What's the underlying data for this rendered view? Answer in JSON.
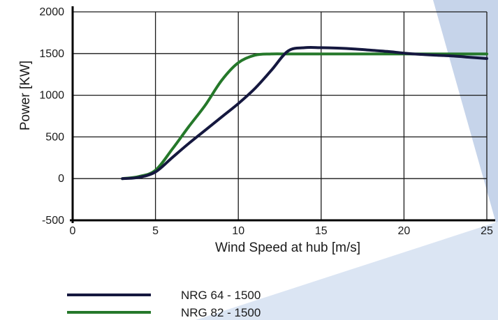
{
  "chart_data": {
    "type": "line",
    "title": "",
    "xlabel": "Wind Speed at hub [m/s]",
    "ylabel": "Power [KW]",
    "xlim": [
      0,
      25
    ],
    "ylim": [
      -500,
      2000
    ],
    "x_ticks": [
      "0",
      "5",
      "10",
      "15",
      "20",
      "25"
    ],
    "y_ticks": [
      "2000",
      "1500",
      "1000",
      "500",
      "0",
      "-500"
    ],
    "grid": true,
    "legend_position": "bottom-left",
    "series": [
      {
        "name": "NRG 64 - 1500",
        "color": "#15183f",
        "x": [
          3,
          4,
          5,
          6,
          7,
          8,
          9,
          10,
          11,
          12,
          13,
          14,
          15,
          16,
          17,
          18,
          19,
          20,
          21,
          22,
          23,
          24,
          25
        ],
        "y": [
          0,
          15,
          80,
          250,
          420,
          580,
          740,
          900,
          1080,
          1300,
          1530,
          1570,
          1570,
          1565,
          1555,
          1540,
          1525,
          1505,
          1490,
          1480,
          1470,
          1455,
          1440
        ]
      },
      {
        "name": "NRG 82 - 1500",
        "color": "#25782a",
        "x": [
          3,
          4,
          5,
          6,
          7,
          8,
          9,
          10,
          11,
          12,
          13,
          14,
          15,
          16,
          17,
          18,
          19,
          20,
          21,
          22,
          23,
          24,
          25
        ],
        "y": [
          0,
          25,
          100,
          350,
          620,
          880,
          1180,
          1390,
          1480,
          1495,
          1495,
          1495,
          1495,
          1495,
          1495,
          1495,
          1495,
          1495,
          1495,
          1495,
          1495,
          1495,
          1495
        ]
      }
    ]
  }
}
